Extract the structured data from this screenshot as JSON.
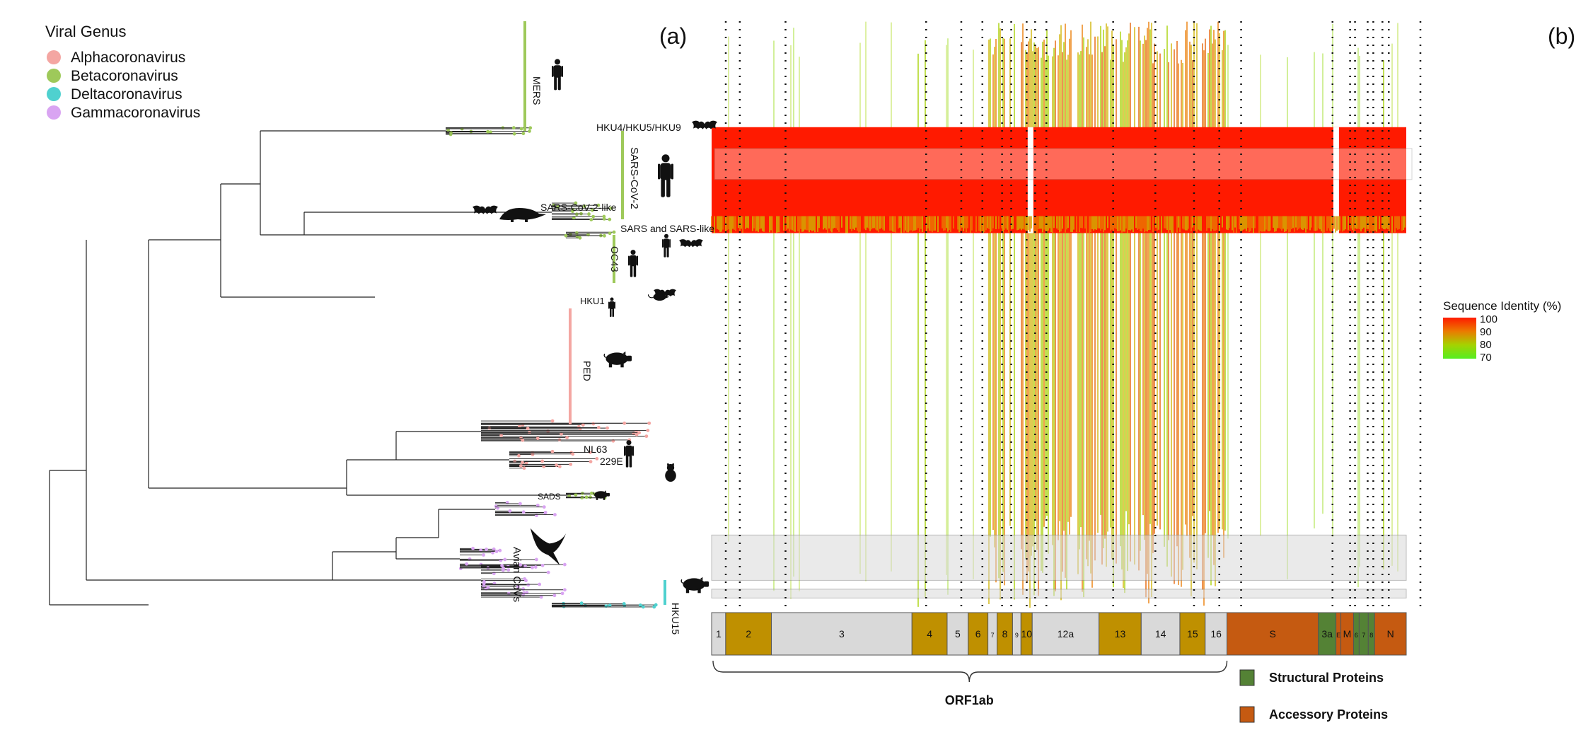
{
  "panels": {
    "a": "(a)",
    "b": "(b)"
  },
  "legend_genus": {
    "title": "Viral Genus",
    "items": [
      {
        "label": "Alphacoronavirus",
        "color": "#f4a6a2"
      },
      {
        "label": "Betacoronavirus",
        "color": "#9ec95a"
      },
      {
        "label": "Deltacoronavirus",
        "color": "#4fd1cf"
      },
      {
        "label": "Gammacoronavirus",
        "color": "#d9a4f2"
      }
    ]
  },
  "clades": [
    {
      "label": "MERS",
      "genus": "Betacoronavirus",
      "hosts": [
        "human-icon"
      ]
    },
    {
      "label": "HKU4/HKU5/HKU9",
      "genus": "Betacoronavirus",
      "hosts": [
        "bat-icon"
      ]
    },
    {
      "label": "SARS-CoV-2",
      "genus": "Betacoronavirus",
      "hosts": [
        "human-icon"
      ]
    },
    {
      "label": "SARS-CoV-2-like",
      "genus": "Betacoronavirus",
      "hosts": [
        "bat-icon",
        "pangolin-icon"
      ]
    },
    {
      "label": "SARS and SARS-like",
      "genus": "Betacoronavirus",
      "hosts": [
        "human-icon",
        "bat-icon"
      ]
    },
    {
      "label": "OC43",
      "genus": "Betacoronavirus",
      "hosts": [
        "human-icon",
        "bat-icon"
      ]
    },
    {
      "label": "HKU1",
      "genus": "Betacoronavirus",
      "hosts": [
        "human-icon",
        "rat-icon"
      ]
    },
    {
      "label": "PED",
      "genus": "Alphacoronavirus",
      "hosts": [
        "pig-icon"
      ]
    },
    {
      "label": "NL63",
      "genus": "Alphacoronavirus",
      "hosts": [
        "human-icon"
      ]
    },
    {
      "label": "229E",
      "genus": "Alphacoronavirus",
      "hosts": [
        "cat-icon"
      ]
    },
    {
      "label": "SADS",
      "genus": "Alphacoronavirus",
      "hosts": [
        "pig-icon"
      ]
    },
    {
      "label": "Avian CoVs",
      "genus": "Gammacoronavirus",
      "hosts": [
        "bird-icon"
      ]
    },
    {
      "label": "HKU15",
      "genus": "Deltacoronavirus",
      "hosts": [
        "pig-icon"
      ]
    }
  ],
  "heatmap_legend": {
    "title": "Sequence Identity (%)",
    "ticks": [
      "100",
      "90",
      "80",
      "70"
    ],
    "colors": [
      "#ff1a00",
      "#eb7a00",
      "#a6d100",
      "#55ee22"
    ]
  },
  "genome": {
    "segments": [
      {
        "label": "1",
        "kind": "nsp",
        "length": 2
      },
      {
        "label": "2",
        "kind": "nsp-alt",
        "length": 6.5
      },
      {
        "label": "3",
        "kind": "nsp",
        "length": 20
      },
      {
        "label": "4",
        "kind": "nsp-alt",
        "length": 5
      },
      {
        "label": "5",
        "kind": "nsp",
        "length": 3
      },
      {
        "label": "6",
        "kind": "nsp-alt",
        "length": 2.8
      },
      {
        "label": "7",
        "kind": "nsp",
        "length": 1.3
      },
      {
        "label": "8",
        "kind": "nsp-alt",
        "length": 2.2
      },
      {
        "label": "9",
        "kind": "nsp",
        "length": 1.2
      },
      {
        "label": "10",
        "kind": "nsp-alt",
        "length": 1.6
      },
      {
        "label": "12a",
        "kind": "nsp",
        "length": 9.5
      },
      {
        "label": "13",
        "kind": "nsp-alt",
        "length": 6
      },
      {
        "label": "14",
        "kind": "nsp",
        "length": 5.5
      },
      {
        "label": "15",
        "kind": "nsp-alt",
        "length": 3.6
      },
      {
        "label": "16",
        "kind": "nsp",
        "length": 3.1
      },
      {
        "label": "S",
        "kind": "accessory",
        "length": 13
      },
      {
        "label": "3a",
        "kind": "structural",
        "length": 2.5
      },
      {
        "label": "E",
        "kind": "accessory",
        "length": 0.7
      },
      {
        "label": "M",
        "kind": "accessory",
        "length": 1.8
      },
      {
        "label": "6",
        "kind": "structural",
        "length": 0.8
      },
      {
        "label": "7",
        "kind": "structural",
        "length": 1.3
      },
      {
        "label": "8",
        "kind": "structural",
        "length": 0.9
      },
      {
        "label": "N",
        "kind": "accessory",
        "length": 4.5
      }
    ],
    "colors": {
      "nsp": "#d9d9d9",
      "nsp-alt": "#bf9000",
      "structural": "#548235",
      "accessory": "#c55a11"
    },
    "brace_label": "ORF1ab"
  },
  "protein_legend": [
    {
      "label": "Structural Proteins",
      "color": "#548235"
    },
    {
      "label": "Accessory Proteins",
      "color": "#c55a11"
    }
  ],
  "heatmap": {
    "column_profile": [
      {
        "from": 0.26,
        "to": 0.31,
        "level": "low"
      },
      {
        "from": 0.39,
        "to": 0.44,
        "level": "mid"
      },
      {
        "from": 0.44,
        "to": 0.74,
        "level": "high"
      },
      {
        "from": 0.96,
        "to": 0.99,
        "level": "low"
      }
    ],
    "red_rows": {
      "from": 0.18,
      "to": 0.36
    },
    "gray_bands": [
      {
        "from": 0.873,
        "to": 0.95
      },
      {
        "from": 0.965,
        "to": 0.98
      }
    ]
  }
}
